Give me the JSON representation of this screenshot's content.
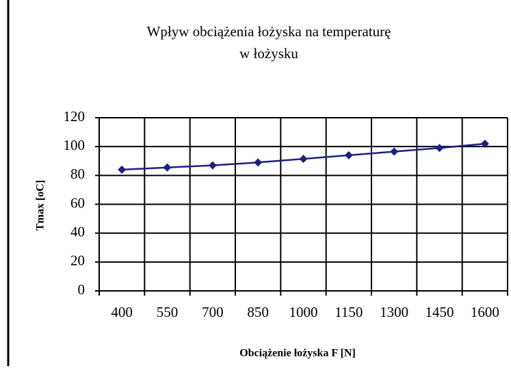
{
  "chart_data": {
    "type": "line",
    "title": [
      "Wpływ obciążenia łożyska na temperaturę",
      "w łożysku"
    ],
    "x_label": "Obciążenie łożyska F [N]",
    "y_label": "Tmax [oC]",
    "categories": [
      "400",
      "550",
      "700",
      "850",
      "1000",
      "1150",
      "1300",
      "1450",
      "1600"
    ],
    "series": [
      {
        "name": "Tmax",
        "color": "#1f1f80",
        "values": [
          84,
          85.5,
          87,
          89,
          91.5,
          94,
          96.5,
          99,
          102
        ]
      }
    ],
    "ylim": [
      0,
      120
    ],
    "yticks": [
      0,
      20,
      40,
      60,
      80,
      100,
      120
    ],
    "grid": true
  }
}
